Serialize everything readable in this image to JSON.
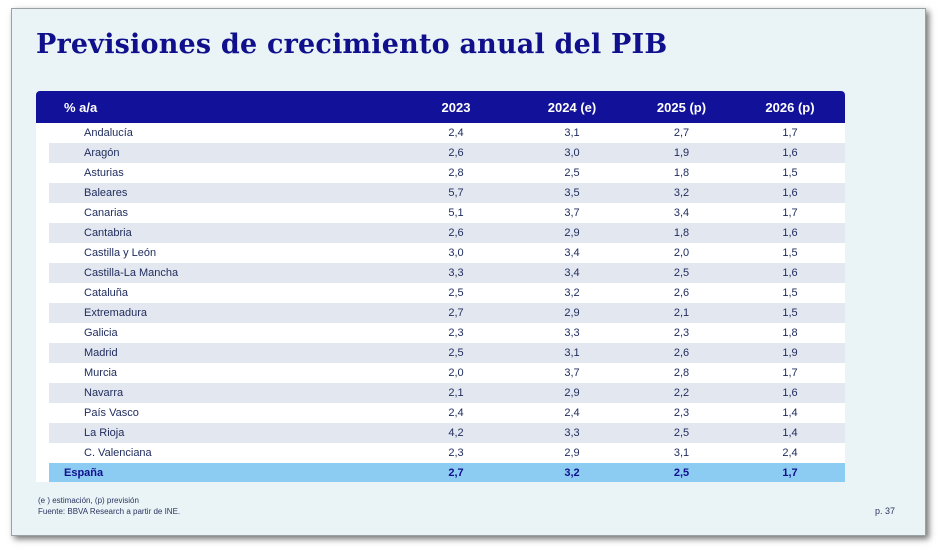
{
  "title": "Previsiones de crecimiento anual del PIB",
  "table": {
    "headers": [
      "% a/a",
      "2023",
      "2024 (e)",
      "2025 (p)",
      "2026 (p)"
    ],
    "rows": [
      {
        "region": "Andalucía",
        "values": [
          "2,4",
          "3,1",
          "2,7",
          "1,7"
        ]
      },
      {
        "region": "Aragón",
        "values": [
          "2,6",
          "3,0",
          "1,9",
          "1,6"
        ]
      },
      {
        "region": "Asturias",
        "values": [
          "2,8",
          "2,5",
          "1,8",
          "1,5"
        ]
      },
      {
        "region": "Baleares",
        "values": [
          "5,7",
          "3,5",
          "3,2",
          "1,6"
        ]
      },
      {
        "region": "Canarias",
        "values": [
          "5,1",
          "3,7",
          "3,4",
          "1,7"
        ]
      },
      {
        "region": "Cantabria",
        "values": [
          "2,6",
          "2,9",
          "1,8",
          "1,6"
        ]
      },
      {
        "region": "Castilla y León",
        "values": [
          "3,0",
          "3,4",
          "2,0",
          "1,5"
        ]
      },
      {
        "region": "Castilla-La Mancha",
        "values": [
          "3,3",
          "3,4",
          "2,5",
          "1,6"
        ]
      },
      {
        "region": "Cataluña",
        "values": [
          "2,5",
          "3,2",
          "2,6",
          "1,5"
        ]
      },
      {
        "region": "Extremadura",
        "values": [
          "2,7",
          "2,9",
          "2,1",
          "1,5"
        ]
      },
      {
        "region": "Galicia",
        "values": [
          "2,3",
          "3,3",
          "2,3",
          "1,8"
        ]
      },
      {
        "region": "Madrid",
        "values": [
          "2,5",
          "3,1",
          "2,6",
          "1,9"
        ]
      },
      {
        "region": "Murcia",
        "values": [
          "2,0",
          "3,7",
          "2,8",
          "1,7"
        ]
      },
      {
        "region": "Navarra",
        "values": [
          "2,1",
          "2,9",
          "2,2",
          "1,6"
        ]
      },
      {
        "region": "País Vasco",
        "values": [
          "2,4",
          "2,4",
          "2,3",
          "1,4"
        ]
      },
      {
        "region": "La Rioja",
        "values": [
          "4,2",
          "3,3",
          "2,5",
          "1,4"
        ]
      },
      {
        "region": "C. Valenciana",
        "values": [
          "2,3",
          "2,9",
          "3,1",
          "2,4"
        ]
      }
    ],
    "total": {
      "region": "España",
      "values": [
        "2,7",
        "3,2",
        "2,5",
        "1,7"
      ]
    }
  },
  "footnote": "(e ) estimación, (p) previsión",
  "source": "Fuente: BBVA Research a partir de INE.",
  "page": "p. 37"
}
